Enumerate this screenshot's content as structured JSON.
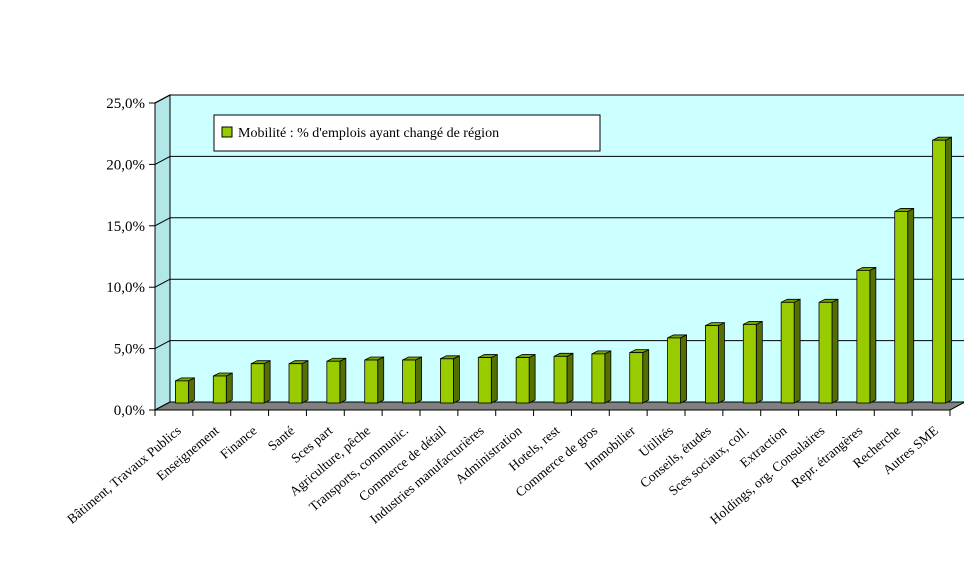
{
  "chart_data": {
    "type": "bar",
    "title": "",
    "xlabel": "",
    "ylabel": "",
    "ylim": [
      0,
      0.25
    ],
    "yticks": [
      "0,0%",
      "5,0%",
      "10,0%",
      "15,0%",
      "20,0%",
      "25,0%"
    ],
    "grid": "horizontal",
    "legend_position": "top-left",
    "bar_color": "#99cc00",
    "plot_background": "#ccffff",
    "floor_color": "#808080",
    "categories": [
      "Bâtiment, Travaux Publics",
      "Enseignement",
      "Finance",
      "Santé",
      "Sces part",
      "Agriculture, pêche",
      "Transports, communic.",
      "Commerce de détail",
      "Industries manufacturières",
      "Administration",
      "Hotels, rest",
      "Commerce de gros",
      "Immobilier",
      "Utilités",
      "Conseils, études",
      "Sces sociaux, coll.",
      "Extraction",
      "Holdings, org. Consulaires",
      "Repr. étrangères",
      "Recherche",
      "Autres SME"
    ],
    "series": [
      {
        "name": "Mobilité : % d'emplois ayant changé de région",
        "values": [
          0.018,
          0.022,
          0.032,
          0.032,
          0.034,
          0.035,
          0.035,
          0.036,
          0.037,
          0.037,
          0.038,
          0.04,
          0.041,
          0.053,
          0.063,
          0.064,
          0.082,
          0.082,
          0.108,
          0.156,
          0.214
        ]
      }
    ]
  }
}
